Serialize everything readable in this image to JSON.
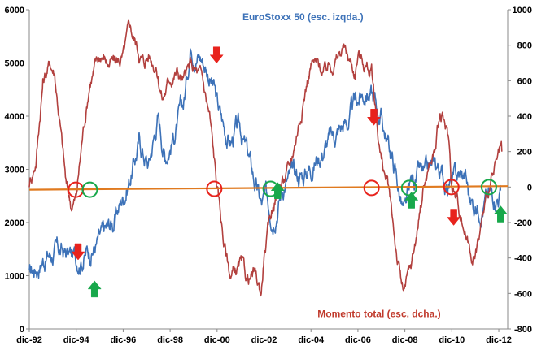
{
  "chart_data": {
    "type": "line",
    "title": "",
    "left_axis": {
      "min": 0,
      "max": 6000,
      "ticks": [
        0,
        1000,
        2000,
        3000,
        4000,
        5000,
        6000
      ]
    },
    "right_axis": {
      "min": -800,
      "max": 1000,
      "ticks": [
        -800,
        -600,
        -400,
        -200,
        0,
        200,
        400,
        600,
        800,
        1000
      ]
    },
    "x_axis": {
      "min": 1992.92,
      "max": 2013.3,
      "tick_values": [
        1992.92,
        1994.92,
        1996.92,
        1998.92,
        2000.92,
        2002.92,
        2004.92,
        2006.92,
        2008.92,
        2010.92,
        2012.92
      ],
      "tick_labels": [
        "dic-92",
        "dic-94",
        "dic-96",
        "dic-98",
        "dic-00",
        "dic-02",
        "dic-04",
        "dic-06",
        "dic-08",
        "dic-10",
        "dic-12"
      ]
    },
    "grid": false,
    "series": [
      {
        "name": "EuroStoxx 50 (esc. izqda.)",
        "axis": "left",
        "color": "#3d72b8",
        "x": [
          1992.92,
          1993.5,
          1994.0,
          1994.5,
          1994.92,
          1995.5,
          1996.0,
          1996.5,
          1996.92,
          1997.3,
          1997.6,
          1997.8,
          1998.0,
          1998.4,
          1998.7,
          1998.92,
          1999.2,
          1999.5,
          1999.8,
          2000.0,
          2000.3,
          2000.6,
          2000.8,
          2000.92,
          2001.2,
          2001.5,
          2001.7,
          2001.92,
          2002.2,
          2002.5,
          2002.8,
          2003.0,
          2003.3,
          2003.5,
          2003.8,
          2004.2,
          2004.6,
          2004.92,
          2005.3,
          2005.6,
          2005.9,
          2006.2,
          2006.5,
          2006.8,
          2007.0,
          2007.3,
          2007.5,
          2007.7,
          2007.9,
          2008.2,
          2008.5,
          2008.8,
          2008.92,
          2009.2,
          2009.5,
          2009.8,
          2010.0,
          2010.3,
          2010.6,
          2010.92,
          2011.2,
          2011.5,
          2011.7,
          2011.92,
          2012.2,
          2012.5,
          2012.8,
          2013.0
        ],
        "values": [
          1000,
          1350,
          1450,
          1400,
          1320,
          1500,
          1700,
          2000,
          2500,
          3000,
          3500,
          3300,
          3100,
          4000,
          3300,
          3500,
          3800,
          4200,
          5400,
          5300,
          5100,
          4800,
          4500,
          4200,
          3800,
          3500,
          3700,
          3700,
          3300,
          2800,
          2300,
          2400,
          2200,
          2450,
          2800,
          2850,
          2900,
          3100,
          3300,
          3500,
          3600,
          3800,
          3900,
          4200,
          4350,
          4500,
          4400,
          4200,
          4000,
          3500,
          3000,
          2300,
          2100,
          2700,
          2900,
          2800,
          2950,
          3050,
          2800,
          2750,
          2850,
          2900,
          2400,
          2300,
          2400,
          2500,
          2600,
          2600
        ]
      },
      {
        "name": "Momento total (esc. dcha.)",
        "axis": "right",
        "color": "#b2403e",
        "x": [
          1992.92,
          1993.2,
          1993.5,
          1993.8,
          1994.0,
          1994.2,
          1994.5,
          1994.7,
          1994.92,
          1995.2,
          1995.5,
          1995.8,
          1996.0,
          1996.3,
          1996.6,
          1996.92,
          1997.2,
          1997.5,
          1997.8,
          1998.0,
          1998.3,
          1998.6,
          1998.92,
          1999.2,
          1999.5,
          1999.8,
          2000.0,
          2000.3,
          2000.6,
          2000.92,
          2001.2,
          2001.5,
          2001.7,
          2001.92,
          2002.2,
          2002.5,
          2002.8,
          2002.92,
          2003.1,
          2003.3,
          2003.5,
          2003.8,
          2004.0,
          2004.3,
          2004.6,
          2004.92,
          2005.2,
          2005.5,
          2005.8,
          2006.0,
          2006.3,
          2006.6,
          2006.8,
          2006.92,
          2007.2,
          2007.5,
          2007.7,
          2007.92,
          2008.2,
          2008.4,
          2008.6,
          2008.8,
          2008.92,
          2009.2,
          2009.5,
          2009.7,
          2009.92,
          2010.2,
          2010.4,
          2010.6,
          2010.8,
          2010.92,
          2011.2,
          2011.5,
          2011.7,
          2011.92,
          2012.2,
          2012.5,
          2012.8,
          2012.92,
          2013.05
        ],
        "values": [
          20,
          150,
          600,
          700,
          650,
          400,
          0,
          -100,
          -60,
          300,
          600,
          700,
          750,
          700,
          700,
          730,
          900,
          800,
          700,
          750,
          700,
          500,
          620,
          650,
          600,
          680,
          650,
          600,
          400,
          0,
          -300,
          -500,
          -480,
          -450,
          -530,
          -500,
          -600,
          -380,
          -250,
          -100,
          0,
          50,
          100,
          300,
          500,
          700,
          680,
          650,
          700,
          720,
          780,
          700,
          650,
          750,
          700,
          650,
          400,
          150,
          0,
          -200,
          -400,
          -570,
          -580,
          -450,
          -200,
          0,
          100,
          200,
          400,
          350,
          250,
          0,
          -100,
          -250,
          -350,
          -400,
          -200,
          0,
          100,
          150,
          200
        ]
      },
      {
        "name": "",
        "axis": "right",
        "color": "#e07a1f",
        "x": [
          1992.92,
          2013.3
        ],
        "values": [
          -15,
          5
        ]
      }
    ],
    "annotations": [
      {
        "type": "circle-red",
        "x": 1994.9,
        "y_right": -15
      },
      {
        "type": "circle-green",
        "x": 1995.5,
        "y_right": -15
      },
      {
        "type": "circle-red",
        "x": 2000.8,
        "y_right": -10
      },
      {
        "type": "circle-green",
        "x": 2003.2,
        "y_right": -10
      },
      {
        "type": "circle-red",
        "x": 2007.5,
        "y_right": -5
      },
      {
        "type": "circle-green",
        "x": 2009.1,
        "y_right": -5
      },
      {
        "type": "circle-red",
        "x": 2010.9,
        "y_right": 0
      },
      {
        "type": "circle-green",
        "x": 2012.5,
        "y_right": 0
      },
      {
        "type": "arrow-down-red",
        "x": 1995.0,
        "y_left": 1450
      },
      {
        "type": "arrow-up-green",
        "x": 1995.7,
        "y_left": 750
      },
      {
        "type": "arrow-down-red",
        "x": 2000.9,
        "y_left": 5150
      },
      {
        "type": "arrow-up-green",
        "x": 2003.5,
        "y_left": 2600
      },
      {
        "type": "arrow-down-red",
        "x": 2007.6,
        "y_left": 3980
      },
      {
        "type": "arrow-up-green",
        "x": 2009.2,
        "y_left": 2420
      },
      {
        "type": "arrow-down-red",
        "x": 2011.0,
        "y_left": 2100
      },
      {
        "type": "arrow-up-green",
        "x": 2013.0,
        "y_left": 2160
      }
    ],
    "series_labels": [
      {
        "text": "EuroStoxx 50 (esc. izqda.)",
        "color": "#3d72b8",
        "x": 2002.0,
        "y_left": 5800
      },
      {
        "text": "Momento total (esc. dcha.)",
        "color": "#c0392b",
        "x": 2005.2,
        "y_left": 220
      }
    ]
  }
}
